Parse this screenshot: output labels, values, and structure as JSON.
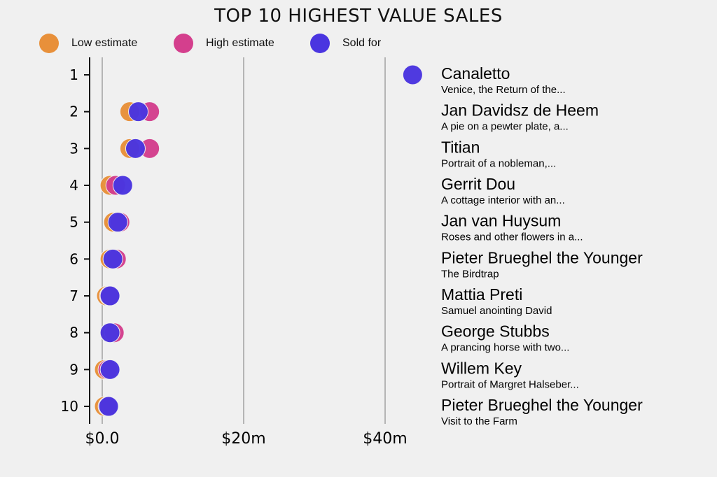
{
  "chart_data": {
    "type": "scatter",
    "title": "TOP 10 HIGHEST VALUE SALES",
    "legend": {
      "placement": "top-left",
      "entries": [
        "Low estimate",
        "High estimate",
        "Sold for"
      ]
    },
    "colors": {
      "low": "#e8903a",
      "high": "#d43f8d",
      "sold": "#4a35e0"
    },
    "xlabel": "",
    "ylabel": "",
    "xlim": [
      -1.8,
      44
    ],
    "x_ticks": [
      {
        "value": 0,
        "label": "$0.0"
      },
      {
        "value": 20,
        "label": "$20m"
      },
      {
        "value": 40,
        "label": "$40m"
      }
    ],
    "grid": true,
    "rows": [
      {
        "rank": "1",
        "artist": "Canaletto",
        "work": "Venice, the Return of the...",
        "low": null,
        "high": null,
        "sold": 43.9
      },
      {
        "rank": "2",
        "artist": "Jan Davidsz de Heem",
        "work": "A pie on a pewter plate, a...",
        "low": 3.9,
        "high": 6.7,
        "sold": 5.1
      },
      {
        "rank": "3",
        "artist": "Titian",
        "work": "Portrait of a nobleman,...",
        "low": 3.9,
        "high": 6.7,
        "sold": 4.7
      },
      {
        "rank": "4",
        "artist": "Gerrit Dou",
        "work": "A cottage interior with an...",
        "low": 1.1,
        "high": 1.9,
        "sold": 2.9
      },
      {
        "rank": "5",
        "artist": "Jan van Huysum",
        "work": "Roses and other flowers in a...",
        "low": 1.6,
        "high": 2.5,
        "sold": 2.2
      },
      {
        "rank": "6",
        "artist": "Pieter Brueghel the Younger",
        "work": "The Birdtrap",
        "low": 1.1,
        "high": 2.0,
        "sold": 1.5
      },
      {
        "rank": "7",
        "artist": "Mattia Preti",
        "work": "Samuel anointing David",
        "low": 0.6,
        "high": 1.0,
        "sold": 1.1
      },
      {
        "rank": "8",
        "artist": "George Stubbs",
        "work": "A prancing horse with two...",
        "low": 1.1,
        "high": 1.7,
        "sold": 1.1
      },
      {
        "rank": "9",
        "artist": "Willem Key",
        "work": "Portrait of Margret Halseber...",
        "low": 0.3,
        "high": 0.8,
        "sold": 1.1
      },
      {
        "rank": "10",
        "artist": "Pieter Brueghel the Younger",
        "work": "Visit to the Farm",
        "low": 0.3,
        "high": 0.8,
        "sold": 0.9
      }
    ]
  }
}
